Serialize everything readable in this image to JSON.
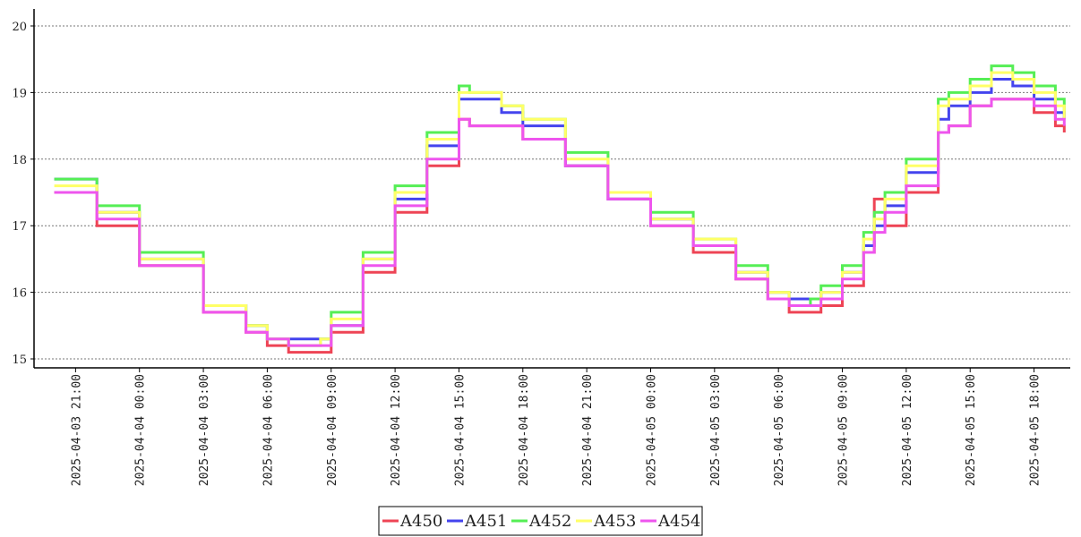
{
  "chart_data": {
    "type": "line",
    "title": "",
    "xlabel": "",
    "ylabel": "",
    "ylim": [
      15,
      20
    ],
    "xlim": [
      "2025-04-03 19:03",
      "2025-04-05 19:42"
    ],
    "yticks": [
      15,
      16,
      17,
      18,
      19,
      20
    ],
    "xticks": [
      {
        "t": "2025-04-03 21:00",
        "label": "2025-04-03 21:00"
      },
      {
        "t": "2025-04-04 00:00",
        "label": "2025-04-04 00:00"
      },
      {
        "t": "2025-04-04 03:00",
        "label": "2025-04-04 03:00"
      },
      {
        "t": "2025-04-04 06:00",
        "label": "2025-04-04 06:00"
      },
      {
        "t": "2025-04-04 09:00",
        "label": "2025-04-04 09:00"
      },
      {
        "t": "2025-04-04 12:00",
        "label": "2025-04-04 12:00"
      },
      {
        "t": "2025-04-04 15:00",
        "label": "2025-04-04 15:00"
      },
      {
        "t": "2025-04-04 18:00",
        "label": "2025-04-04 18:00"
      },
      {
        "t": "2025-04-04 21:00",
        "label": "2025-04-04 21:00"
      },
      {
        "t": "2025-04-05 00:00",
        "label": "2025-04-05 00:00"
      },
      {
        "t": "2025-04-05 03:00",
        "label": "2025-04-05 03:00"
      },
      {
        "t": "2025-04-05 06:00",
        "label": "2025-04-05 06:00"
      },
      {
        "t": "2025-04-05 09:00",
        "label": "2025-04-05 09:00"
      },
      {
        "t": "2025-04-05 12:00",
        "label": "2025-04-05 12:00"
      },
      {
        "t": "2025-04-05 15:00",
        "label": "2025-04-05 15:00"
      },
      {
        "t": "2025-04-05 18:00",
        "label": "2025-04-05 18:00"
      }
    ],
    "grid": {
      "horizontal": true,
      "vertical": false,
      "style": "dotted"
    },
    "legend": {
      "position": "bottom-center",
      "boxed": true
    },
    "step": true,
    "series": [
      {
        "name": "A450",
        "color": "#ee4455",
        "points": [
          [
            "2025-04-03 20:00",
            17.5
          ],
          [
            "2025-04-03 22:00",
            17.0
          ],
          [
            "2025-04-04 00:00",
            16.4
          ],
          [
            "2025-04-04 03:00",
            15.7
          ],
          [
            "2025-04-04 05:00",
            15.4
          ],
          [
            "2025-04-04 06:00",
            15.2
          ],
          [
            "2025-04-04 07:00",
            15.1
          ],
          [
            "2025-04-04 08:30",
            15.1
          ],
          [
            "2025-04-04 09:00",
            15.4
          ],
          [
            "2025-04-04 10:30",
            16.3
          ],
          [
            "2025-04-04 12:00",
            17.2
          ],
          [
            "2025-04-04 13:30",
            17.9
          ],
          [
            "2025-04-04 15:00",
            18.6
          ],
          [
            "2025-04-04 15:30",
            18.5
          ],
          [
            "2025-04-04 17:00",
            18.5
          ],
          [
            "2025-04-04 18:00",
            18.3
          ],
          [
            "2025-04-04 20:00",
            17.9
          ],
          [
            "2025-04-04 22:00",
            17.4
          ],
          [
            "2025-04-05 00:00",
            17.0
          ],
          [
            "2025-04-05 02:00",
            16.6
          ],
          [
            "2025-04-05 04:00",
            16.2
          ],
          [
            "2025-04-05 05:30",
            15.9
          ],
          [
            "2025-04-05 06:30",
            15.7
          ],
          [
            "2025-04-05 07:30",
            15.7
          ],
          [
            "2025-04-05 08:00",
            15.8
          ],
          [
            "2025-04-05 09:00",
            16.1
          ],
          [
            "2025-04-05 10:00",
            16.6
          ],
          [
            "2025-04-05 10:30",
            17.4
          ],
          [
            "2025-04-05 11:00",
            17.0
          ],
          [
            "2025-04-05 12:00",
            17.5
          ],
          [
            "2025-04-05 13:30",
            18.4
          ],
          [
            "2025-04-05 14:00",
            18.5
          ],
          [
            "2025-04-05 15:00",
            18.8
          ],
          [
            "2025-04-05 16:00",
            18.9
          ],
          [
            "2025-04-05 17:00",
            18.9
          ],
          [
            "2025-04-05 18:00",
            18.7
          ],
          [
            "2025-04-05 19:00",
            18.5
          ],
          [
            "2025-04-05 19:25",
            18.4
          ]
        ]
      },
      {
        "name": "A451",
        "color": "#4444ee",
        "points": [
          [
            "2025-04-03 20:00",
            17.7
          ],
          [
            "2025-04-03 22:00",
            17.2
          ],
          [
            "2025-04-04 00:00",
            16.5
          ],
          [
            "2025-04-04 03:00",
            15.8
          ],
          [
            "2025-04-04 05:00",
            15.5
          ],
          [
            "2025-04-04 06:00",
            15.3
          ],
          [
            "2025-04-04 07:00",
            15.3
          ],
          [
            "2025-04-04 08:30",
            15.3
          ],
          [
            "2025-04-04 09:00",
            15.5
          ],
          [
            "2025-04-04 10:30",
            16.5
          ],
          [
            "2025-04-04 12:00",
            17.4
          ],
          [
            "2025-04-04 13:30",
            18.2
          ],
          [
            "2025-04-04 15:00",
            18.9
          ],
          [
            "2025-04-04 15:30",
            18.9
          ],
          [
            "2025-04-04 17:00",
            18.7
          ],
          [
            "2025-04-04 18:00",
            18.5
          ],
          [
            "2025-04-04 20:00",
            17.9
          ],
          [
            "2025-04-04 22:00",
            17.4
          ],
          [
            "2025-04-05 00:00",
            17.1
          ],
          [
            "2025-04-05 02:00",
            16.7
          ],
          [
            "2025-04-05 04:00",
            16.3
          ],
          [
            "2025-04-05 05:30",
            16.0
          ],
          [
            "2025-04-05 06:30",
            15.9
          ],
          [
            "2025-04-05 07:30",
            15.9
          ],
          [
            "2025-04-05 08:00",
            16.0
          ],
          [
            "2025-04-05 09:00",
            16.3
          ],
          [
            "2025-04-05 10:00",
            16.7
          ],
          [
            "2025-04-05 10:30",
            17.0
          ],
          [
            "2025-04-05 11:00",
            17.3
          ],
          [
            "2025-04-05 12:00",
            17.8
          ],
          [
            "2025-04-05 13:30",
            18.6
          ],
          [
            "2025-04-05 14:00",
            18.8
          ],
          [
            "2025-04-05 15:00",
            19.0
          ],
          [
            "2025-04-05 16:00",
            19.2
          ],
          [
            "2025-04-05 17:00",
            19.1
          ],
          [
            "2025-04-05 18:00",
            18.9
          ],
          [
            "2025-04-05 19:00",
            18.7
          ],
          [
            "2025-04-05 19:25",
            18.6
          ]
        ]
      },
      {
        "name": "A452",
        "color": "#55ee55",
        "points": [
          [
            "2025-04-03 20:00",
            17.7
          ],
          [
            "2025-04-03 22:00",
            17.3
          ],
          [
            "2025-04-04 00:00",
            16.6
          ],
          [
            "2025-04-04 03:00",
            15.8
          ],
          [
            "2025-04-04 05:00",
            15.5
          ],
          [
            "2025-04-04 06:00",
            15.3
          ],
          [
            "2025-04-04 07:00",
            15.2
          ],
          [
            "2025-04-04 08:30",
            15.3
          ],
          [
            "2025-04-04 09:00",
            15.7
          ],
          [
            "2025-04-04 10:30",
            16.6
          ],
          [
            "2025-04-04 12:00",
            17.6
          ],
          [
            "2025-04-04 13:30",
            18.4
          ],
          [
            "2025-04-04 15:00",
            19.1
          ],
          [
            "2025-04-04 15:30",
            19.0
          ],
          [
            "2025-04-04 17:00",
            18.8
          ],
          [
            "2025-04-04 18:00",
            18.6
          ],
          [
            "2025-04-04 20:00",
            18.1
          ],
          [
            "2025-04-04 22:00",
            17.5
          ],
          [
            "2025-04-05 00:00",
            17.2
          ],
          [
            "2025-04-05 02:00",
            16.8
          ],
          [
            "2025-04-05 04:00",
            16.4
          ],
          [
            "2025-04-05 05:30",
            16.0
          ],
          [
            "2025-04-05 06:30",
            15.8
          ],
          [
            "2025-04-05 07:30",
            15.9
          ],
          [
            "2025-04-05 08:00",
            16.1
          ],
          [
            "2025-04-05 09:00",
            16.4
          ],
          [
            "2025-04-05 10:00",
            16.9
          ],
          [
            "2025-04-05 10:30",
            17.2
          ],
          [
            "2025-04-05 11:00",
            17.5
          ],
          [
            "2025-04-05 12:00",
            18.0
          ],
          [
            "2025-04-05 13:30",
            18.9
          ],
          [
            "2025-04-05 14:00",
            19.0
          ],
          [
            "2025-04-05 15:00",
            19.2
          ],
          [
            "2025-04-05 16:00",
            19.4
          ],
          [
            "2025-04-05 17:00",
            19.3
          ],
          [
            "2025-04-05 18:00",
            19.1
          ],
          [
            "2025-04-05 19:00",
            18.9
          ],
          [
            "2025-04-05 19:25",
            18.7
          ]
        ]
      },
      {
        "name": "A453",
        "color": "#ffff66",
        "points": [
          [
            "2025-04-03 20:00",
            17.6
          ],
          [
            "2025-04-03 22:00",
            17.2
          ],
          [
            "2025-04-04 00:00",
            16.5
          ],
          [
            "2025-04-04 03:00",
            15.8
          ],
          [
            "2025-04-04 05:00",
            15.5
          ],
          [
            "2025-04-04 06:00",
            15.3
          ],
          [
            "2025-04-04 07:00",
            15.2
          ],
          [
            "2025-04-04 08:30",
            15.3
          ],
          [
            "2025-04-04 09:00",
            15.6
          ],
          [
            "2025-04-04 10:30",
            16.5
          ],
          [
            "2025-04-04 12:00",
            17.5
          ],
          [
            "2025-04-04 13:30",
            18.3
          ],
          [
            "2025-04-04 15:00",
            19.0
          ],
          [
            "2025-04-04 15:30",
            19.0
          ],
          [
            "2025-04-04 17:00",
            18.8
          ],
          [
            "2025-04-04 18:00",
            18.6
          ],
          [
            "2025-04-04 20:00",
            18.0
          ],
          [
            "2025-04-04 22:00",
            17.5
          ],
          [
            "2025-04-05 00:00",
            17.1
          ],
          [
            "2025-04-05 02:00",
            16.8
          ],
          [
            "2025-04-05 04:00",
            16.3
          ],
          [
            "2025-04-05 05:30",
            16.0
          ],
          [
            "2025-04-05 06:30",
            15.8
          ],
          [
            "2025-04-05 07:30",
            15.8
          ],
          [
            "2025-04-05 08:00",
            16.0
          ],
          [
            "2025-04-05 09:00",
            16.3
          ],
          [
            "2025-04-05 10:00",
            16.8
          ],
          [
            "2025-04-05 10:30",
            17.1
          ],
          [
            "2025-04-05 11:00",
            17.4
          ],
          [
            "2025-04-05 12:00",
            17.9
          ],
          [
            "2025-04-05 13:30",
            18.8
          ],
          [
            "2025-04-05 14:00",
            18.9
          ],
          [
            "2025-04-05 15:00",
            19.1
          ],
          [
            "2025-04-05 16:00",
            19.3
          ],
          [
            "2025-04-05 17:00",
            19.2
          ],
          [
            "2025-04-05 18:00",
            19.0
          ],
          [
            "2025-04-05 19:00",
            18.8
          ],
          [
            "2025-04-05 19:25",
            18.6
          ]
        ]
      },
      {
        "name": "A454",
        "color": "#ee55ee",
        "points": [
          [
            "2025-04-03 20:00",
            17.5
          ],
          [
            "2025-04-03 22:00",
            17.1
          ],
          [
            "2025-04-04 00:00",
            16.4
          ],
          [
            "2025-04-04 03:00",
            15.7
          ],
          [
            "2025-04-04 05:00",
            15.4
          ],
          [
            "2025-04-04 06:00",
            15.3
          ],
          [
            "2025-04-04 07:00",
            15.2
          ],
          [
            "2025-04-04 08:30",
            15.2
          ],
          [
            "2025-04-04 09:00",
            15.5
          ],
          [
            "2025-04-04 10:30",
            16.4
          ],
          [
            "2025-04-04 12:00",
            17.3
          ],
          [
            "2025-04-04 13:30",
            18.0
          ],
          [
            "2025-04-04 15:00",
            18.6
          ],
          [
            "2025-04-04 15:30",
            18.5
          ],
          [
            "2025-04-04 17:00",
            18.5
          ],
          [
            "2025-04-04 18:00",
            18.3
          ],
          [
            "2025-04-04 20:00",
            17.9
          ],
          [
            "2025-04-04 22:00",
            17.4
          ],
          [
            "2025-04-05 00:00",
            17.0
          ],
          [
            "2025-04-05 02:00",
            16.7
          ],
          [
            "2025-04-05 04:00",
            16.2
          ],
          [
            "2025-04-05 05:30",
            15.9
          ],
          [
            "2025-04-05 06:30",
            15.8
          ],
          [
            "2025-04-05 07:30",
            15.8
          ],
          [
            "2025-04-05 08:00",
            15.9
          ],
          [
            "2025-04-05 09:00",
            16.2
          ],
          [
            "2025-04-05 10:00",
            16.6
          ],
          [
            "2025-04-05 10:30",
            16.9
          ],
          [
            "2025-04-05 11:00",
            17.2
          ],
          [
            "2025-04-05 12:00",
            17.6
          ],
          [
            "2025-04-05 13:30",
            18.4
          ],
          [
            "2025-04-05 14:00",
            18.5
          ],
          [
            "2025-04-05 15:00",
            18.8
          ],
          [
            "2025-04-05 16:00",
            18.9
          ],
          [
            "2025-04-05 17:00",
            18.9
          ],
          [
            "2025-04-05 18:00",
            18.8
          ],
          [
            "2025-04-05 19:00",
            18.6
          ],
          [
            "2025-04-05 19:25",
            18.5
          ]
        ]
      }
    ]
  }
}
